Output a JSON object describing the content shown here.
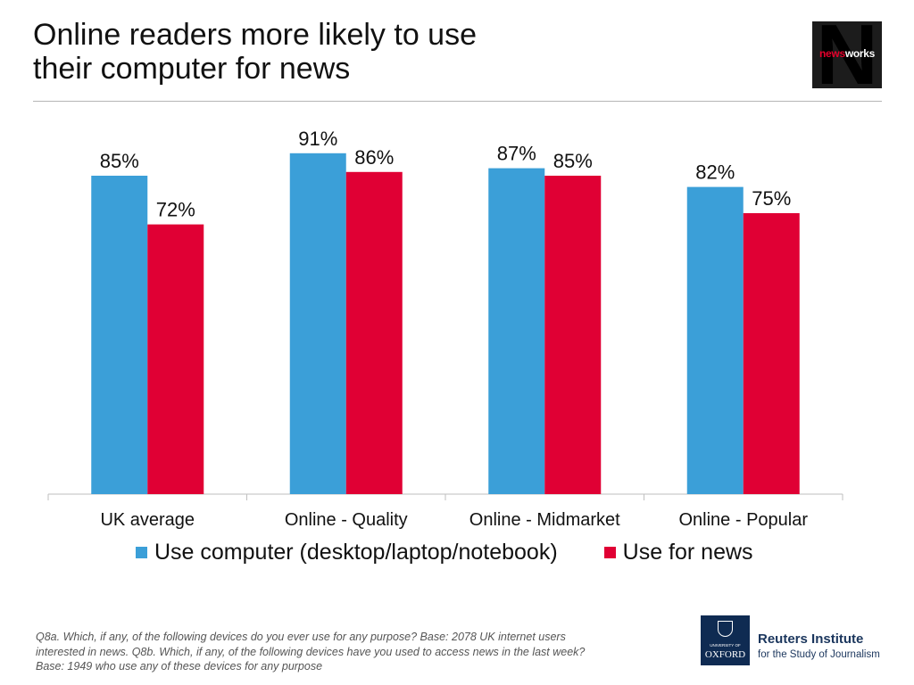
{
  "title": {
    "line1": "Online readers more likely to use",
    "line2": "their computer for news"
  },
  "logos": {
    "newsworks": {
      "big_letter": "N",
      "word_accent": "news",
      "word_rest": "works"
    },
    "oxford": {
      "small": "UNIVERSITY OF",
      "big": "OXFORD"
    },
    "reuters": {
      "name": "Reuters Institute",
      "subtitle": "for the Study of Journalism"
    }
  },
  "colors": {
    "computer": "#3b9fd8",
    "news": "#e00034",
    "axis": "#bfbfbf"
  },
  "chart_data": {
    "type": "bar",
    "categories": [
      "UK average",
      "Online - Quality",
      "Online - Midmarket",
      "Online - Popular"
    ],
    "series": [
      {
        "name": "Use computer (desktop/laptop/notebook)",
        "values": [
          85,
          91,
          87,
          82
        ],
        "labels": [
          "85%",
          "91%",
          "87%",
          "82%"
        ]
      },
      {
        "name": "Use for news",
        "values": [
          72,
          86,
          85,
          75
        ],
        "labels": [
          "72%",
          "86%",
          "85%",
          "75%"
        ]
      }
    ],
    "ylim": [
      0,
      100
    ],
    "legend": "bottom",
    "grid": false
  },
  "footnote": {
    "line1": "Q8a. Which, if any, of the following devices do you ever use for any purpose? Base: 2078 UK  internet users",
    "line2": "interested in news. Q8b. Which, if any, of the following devices have you used to access news in the last week?",
    "line3": "Base: 1949 who use any of these devices for any purpose"
  }
}
